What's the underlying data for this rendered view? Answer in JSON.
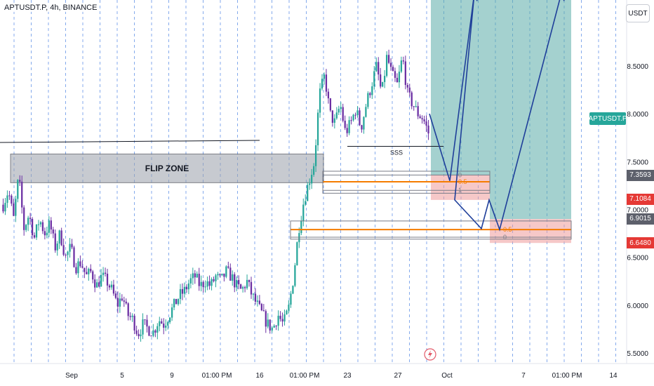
{
  "header": {
    "symbol_title": "APTUSDT.P, 4h, BINANCE",
    "currency": "USDT"
  },
  "colors": {
    "up": "#26a69a",
    "down": "#6b2fa3",
    "resistance_line": "#e35b6a",
    "target_zone": "#5aaba8",
    "stop_zone": "#ef9a9a",
    "projection": "#1f3f9a",
    "fib_orange": "#f57c00",
    "fib_gray": "#787b86",
    "flip_zone": "#9aa0ab",
    "grid_dash": "#5b8ee6"
  },
  "chart_data": {
    "type": "candlestick",
    "y_ticks": [
      "8.5000",
      "8.0000",
      "7.5000",
      "7.0000",
      "6.5000",
      "6.0000",
      "5.5000"
    ],
    "ylim": [
      5.45,
      9.5
    ],
    "x_ticks": [
      "Sep",
      "5",
      "9",
      "01:00 PM",
      "16",
      "01:00 PM",
      "23",
      "27",
      "Oct",
      "7",
      "01:00 PM",
      "14"
    ],
    "annotations": {
      "flip_zone_label": "FLIP ZONE",
      "flip_zone_range": [
        7.28,
        7.58
      ],
      "sss_label": "SSS",
      "sss_level": 7.66,
      "resistance_level": 9.26
    },
    "price_tags": [
      {
        "label": "APTUSDT.P",
        "value": 8.0,
        "kind": "symbol"
      },
      {
        "label": "7.3593",
        "value": 7.3593,
        "kind": "neutral"
      },
      {
        "label": "7.1084",
        "value": 7.1084,
        "kind": "loss"
      },
      {
        "label": "6.9015",
        "value": 6.9015,
        "kind": "neutral"
      },
      {
        "label": "6.6480",
        "value": 6.648,
        "kind": "loss"
      }
    ],
    "fib_levels": [
      {
        "labels": [
          "0",
          "0.5",
          "1"
        ],
        "values": [
          7.36,
          7.29,
          7.2
        ]
      },
      {
        "labels": [
          "0.5",
          "0"
        ],
        "values": [
          6.79,
          6.71
        ]
      }
    ],
    "projection_path": [
      8.0,
      7.3,
      9.26,
      7.1,
      6.8,
      7.1,
      6.79,
      9.26
    ],
    "candle_path": [
      7.05,
      7.2,
      6.9,
      7.35,
      6.8,
      6.95,
      6.7,
      6.9,
      6.75,
      6.85,
      6.6,
      6.75,
      6.5,
      6.6,
      6.4,
      6.45,
      6.3,
      6.35,
      6.2,
      6.3,
      6.25,
      6.15,
      6.0,
      6.1,
      5.9,
      5.85,
      5.7,
      5.8,
      5.75,
      5.72,
      5.85,
      5.8,
      5.9,
      6.0,
      6.1,
      6.15,
      6.25,
      6.3,
      6.2,
      6.25,
      6.2,
      6.3,
      6.25,
      6.35,
      6.3,
      6.2,
      6.15,
      6.25,
      6.1,
      6.0,
      5.9,
      5.8,
      5.75,
      5.9,
      5.8,
      5.95,
      6.3,
      6.8,
      7.1,
      7.3,
      7.5,
      8.2,
      8.4,
      8.0,
      7.9,
      8.1,
      7.8,
      7.9,
      8.05,
      7.85,
      8.1,
      8.3,
      8.5,
      8.2,
      8.6,
      8.4,
      8.3,
      8.6,
      8.2,
      8.1,
      8.0,
      7.95,
      7.8
    ]
  }
}
